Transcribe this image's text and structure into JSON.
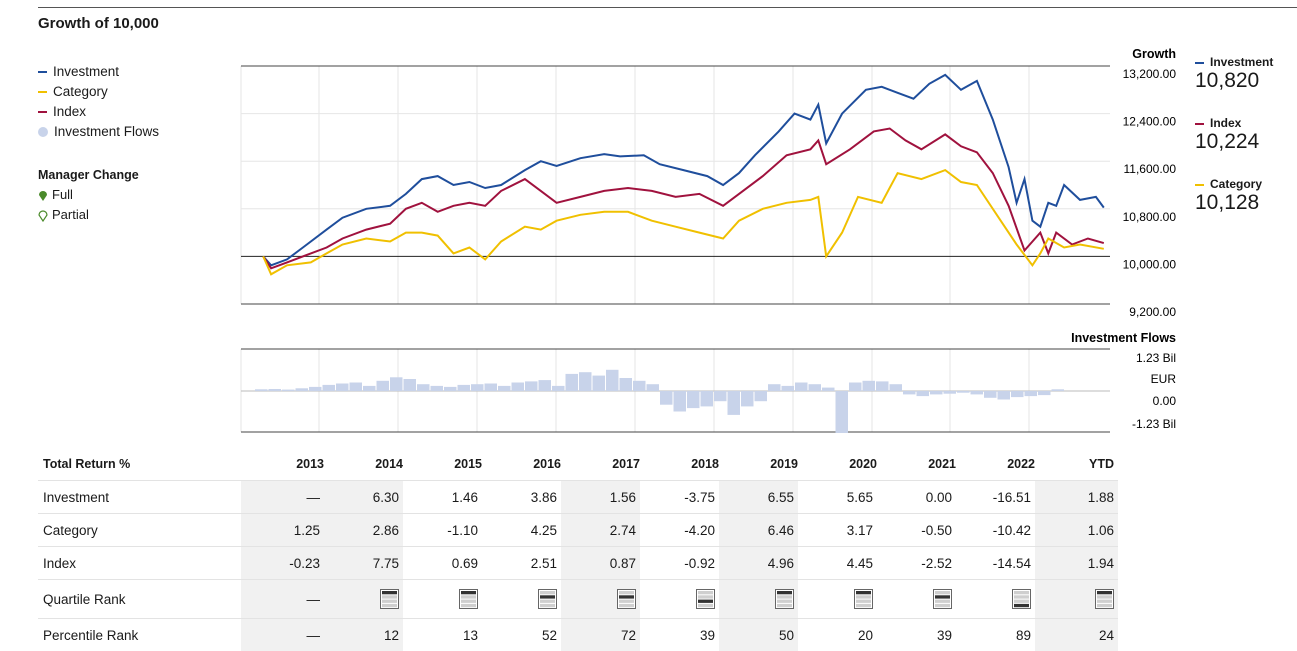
{
  "title": "Growth of 10,000",
  "legend": [
    {
      "label": "Investment",
      "color": "#1f4e9c"
    },
    {
      "label": "Category",
      "color": "#f0c000"
    },
    {
      "label": "Index",
      "color": "#a0123e"
    },
    {
      "label": "Investment Flows",
      "color": "#c8d3ea"
    }
  ],
  "manager_change": {
    "title": "Manager Change",
    "full": "Full",
    "partial": "Partial"
  },
  "growth_axis": {
    "title": "Growth",
    "ticks": [
      "13,200.00",
      "12,400.00",
      "11,600.00",
      "10,800.00",
      "10,000.00",
      "9,200.00"
    ]
  },
  "flows_axis": {
    "title": "Investment Flows",
    "ticks": [
      "1.23 Bil",
      "EUR",
      "0.00",
      "-1.23 Bil"
    ]
  },
  "right_legend": [
    {
      "label": "Investment",
      "value": "10,820",
      "color": "#1f4e9c"
    },
    {
      "label": "Index",
      "value": "10,224",
      "color": "#a0123e"
    },
    {
      "label": "Category",
      "value": "10,128",
      "color": "#f0c000"
    }
  ],
  "chart_data": {
    "type": "line",
    "title": "Growth of 10,000",
    "ylabel": "Growth",
    "ylim": [
      9200,
      13200
    ],
    "x_ticks": [
      "2013",
      "2014",
      "2015",
      "2016",
      "2017",
      "2018",
      "2019",
      "2020",
      "2021",
      "2022",
      "YTD"
    ],
    "grid": true,
    "series": [
      {
        "name": "Investment",
        "color": "#1f4e9c",
        "points": [
          [
            2013.0,
            10000
          ],
          [
            2013.1,
            9850
          ],
          [
            2013.3,
            9950
          ],
          [
            2013.5,
            10150
          ],
          [
            2013.8,
            10450
          ],
          [
            2014.0,
            10650
          ],
          [
            2014.3,
            10800
          ],
          [
            2014.6,
            10850
          ],
          [
            2014.8,
            11050
          ],
          [
            2015.0,
            11300
          ],
          [
            2015.2,
            11350
          ],
          [
            2015.4,
            11200
          ],
          [
            2015.6,
            11250
          ],
          [
            2015.8,
            11150
          ],
          [
            2016.0,
            11200
          ],
          [
            2016.3,
            11450
          ],
          [
            2016.5,
            11600
          ],
          [
            2016.7,
            11520
          ],
          [
            2017.0,
            11650
          ],
          [
            2017.3,
            11720
          ],
          [
            2017.5,
            11680
          ],
          [
            2017.8,
            11700
          ],
          [
            2018.0,
            11550
          ],
          [
            2018.3,
            11450
          ],
          [
            2018.6,
            11350
          ],
          [
            2018.8,
            11200
          ],
          [
            2019.0,
            11400
          ],
          [
            2019.2,
            11700
          ],
          [
            2019.5,
            12100
          ],
          [
            2019.7,
            12400
          ],
          [
            2019.9,
            12300
          ],
          [
            2020.0,
            12550
          ],
          [
            2020.1,
            11900
          ],
          [
            2020.3,
            12400
          ],
          [
            2020.6,
            12800
          ],
          [
            2020.8,
            12850
          ],
          [
            2021.0,
            12750
          ],
          [
            2021.2,
            12650
          ],
          [
            2021.4,
            12900
          ],
          [
            2021.6,
            13050
          ],
          [
            2021.8,
            12800
          ],
          [
            2022.0,
            12950
          ],
          [
            2022.2,
            12300
          ],
          [
            2022.4,
            11500
          ],
          [
            2022.5,
            10900
          ],
          [
            2022.6,
            11300
          ],
          [
            2022.7,
            10600
          ],
          [
            2022.8,
            10500
          ],
          [
            2022.9,
            10900
          ],
          [
            2023.0,
            10850
          ],
          [
            2023.1,
            11200
          ],
          [
            2023.3,
            10950
          ],
          [
            2023.5,
            11000
          ],
          [
            2023.6,
            10820
          ]
        ]
      },
      {
        "name": "Index",
        "color": "#a0123e",
        "points": [
          [
            2013.0,
            10000
          ],
          [
            2013.1,
            9800
          ],
          [
            2013.3,
            9900
          ],
          [
            2013.6,
            10050
          ],
          [
            2013.8,
            10150
          ],
          [
            2014.0,
            10300
          ],
          [
            2014.3,
            10450
          ],
          [
            2014.6,
            10550
          ],
          [
            2014.8,
            10800
          ],
          [
            2015.0,
            10900
          ],
          [
            2015.2,
            10750
          ],
          [
            2015.4,
            10850
          ],
          [
            2015.6,
            10900
          ],
          [
            2015.8,
            10850
          ],
          [
            2016.0,
            11100
          ],
          [
            2016.3,
            11300
          ],
          [
            2016.5,
            11100
          ],
          [
            2016.7,
            10900
          ],
          [
            2017.0,
            11000
          ],
          [
            2017.3,
            11100
          ],
          [
            2017.6,
            11150
          ],
          [
            2017.9,
            11100
          ],
          [
            2018.2,
            11000
          ],
          [
            2018.5,
            11050
          ],
          [
            2018.8,
            10850
          ],
          [
            2019.0,
            11050
          ],
          [
            2019.3,
            11350
          ],
          [
            2019.6,
            11700
          ],
          [
            2019.9,
            11800
          ],
          [
            2020.0,
            11950
          ],
          [
            2020.1,
            11550
          ],
          [
            2020.4,
            11800
          ],
          [
            2020.7,
            12100
          ],
          [
            2020.9,
            12150
          ],
          [
            2021.1,
            11950
          ],
          [
            2021.3,
            11800
          ],
          [
            2021.6,
            12050
          ],
          [
            2021.8,
            11850
          ],
          [
            2022.0,
            11750
          ],
          [
            2022.2,
            11400
          ],
          [
            2022.4,
            10850
          ],
          [
            2022.6,
            10100
          ],
          [
            2022.8,
            10400
          ],
          [
            2022.9,
            10050
          ],
          [
            2023.0,
            10400
          ],
          [
            2023.2,
            10200
          ],
          [
            2023.4,
            10300
          ],
          [
            2023.6,
            10224
          ]
        ]
      },
      {
        "name": "Category",
        "color": "#f0c000",
        "points": [
          [
            2013.0,
            10000
          ],
          [
            2013.1,
            9700
          ],
          [
            2013.3,
            9850
          ],
          [
            2013.6,
            9900
          ],
          [
            2013.8,
            10050
          ],
          [
            2014.0,
            10200
          ],
          [
            2014.3,
            10300
          ],
          [
            2014.6,
            10250
          ],
          [
            2014.8,
            10400
          ],
          [
            2015.0,
            10400
          ],
          [
            2015.2,
            10350
          ],
          [
            2015.4,
            10050
          ],
          [
            2015.6,
            10150
          ],
          [
            2015.8,
            9950
          ],
          [
            2016.0,
            10250
          ],
          [
            2016.3,
            10500
          ],
          [
            2016.5,
            10450
          ],
          [
            2016.7,
            10600
          ],
          [
            2017.0,
            10700
          ],
          [
            2017.3,
            10750
          ],
          [
            2017.6,
            10750
          ],
          [
            2017.9,
            10600
          ],
          [
            2018.2,
            10500
          ],
          [
            2018.5,
            10400
          ],
          [
            2018.8,
            10300
          ],
          [
            2019.0,
            10600
          ],
          [
            2019.3,
            10800
          ],
          [
            2019.6,
            10900
          ],
          [
            2019.9,
            10950
          ],
          [
            2020.0,
            11000
          ],
          [
            2020.1,
            10000
          ],
          [
            2020.3,
            10400
          ],
          [
            2020.5,
            11000
          ],
          [
            2020.8,
            10900
          ],
          [
            2021.0,
            11400
          ],
          [
            2021.3,
            11300
          ],
          [
            2021.6,
            11450
          ],
          [
            2021.8,
            11250
          ],
          [
            2022.0,
            11200
          ],
          [
            2022.3,
            10600
          ],
          [
            2022.5,
            10200
          ],
          [
            2022.7,
            9850
          ],
          [
            2022.8,
            10050
          ],
          [
            2022.9,
            10300
          ],
          [
            2023.1,
            10150
          ],
          [
            2023.3,
            10200
          ],
          [
            2023.6,
            10128
          ]
        ]
      }
    ],
    "flows": {
      "unit": "EUR",
      "ylim": [
        -1.23,
        1.23
      ],
      "values": [
        0.05,
        0.06,
        0.04,
        0.08,
        0.12,
        0.18,
        0.22,
        0.25,
        0.15,
        0.3,
        0.4,
        0.35,
        0.2,
        0.15,
        0.12,
        0.18,
        0.2,
        0.22,
        0.15,
        0.25,
        0.28,
        0.32,
        0.15,
        0.5,
        0.55,
        0.45,
        0.62,
        0.38,
        0.3,
        0.2,
        -0.4,
        -0.6,
        -0.5,
        -0.45,
        -0.3,
        -0.7,
        -0.45,
        -0.3,
        0.2,
        0.15,
        0.25,
        0.2,
        0.1,
        -1.23,
        0.25,
        0.3,
        0.28,
        0.2,
        -0.1,
        -0.15,
        -0.1,
        -0.08,
        -0.05,
        -0.1,
        -0.2,
        -0.25,
        -0.18,
        -0.15,
        -0.12,
        0.05
      ]
    }
  },
  "returns_table": {
    "header": {
      "label": "Total Return %",
      "years": [
        "2013",
        "2014",
        "2015",
        "2016",
        "2017",
        "2018",
        "2019",
        "2020",
        "2021",
        "2022",
        "YTD"
      ]
    },
    "rows": [
      {
        "label": "Investment",
        "values": [
          "—",
          "6.30",
          "1.46",
          "3.86",
          "1.56",
          "-3.75",
          "6.55",
          "5.65",
          "0.00",
          "-16.51",
          "1.88"
        ]
      },
      {
        "label": "Category",
        "values": [
          "1.25",
          "2.86",
          "-1.10",
          "4.25",
          "2.74",
          "-4.20",
          "6.46",
          "3.17",
          "-0.50",
          "-10.42",
          "1.06"
        ]
      },
      {
        "label": "Index",
        "values": [
          "-0.23",
          "7.75",
          "0.69",
          "2.51",
          "0.87",
          "-0.92",
          "4.96",
          "4.45",
          "-2.52",
          "-14.54",
          "1.94"
        ]
      }
    ],
    "quartile": {
      "label": "Quartile Rank",
      "values": [
        "—",
        "1",
        "1",
        "2",
        "2",
        "3",
        "1",
        "1",
        "2",
        "4",
        "1"
      ]
    },
    "percentile": {
      "label": "Percentile Rank",
      "values": [
        "—",
        "12",
        "13",
        "52",
        "72",
        "39",
        "50",
        "20",
        "39",
        "89",
        "24"
      ]
    }
  }
}
